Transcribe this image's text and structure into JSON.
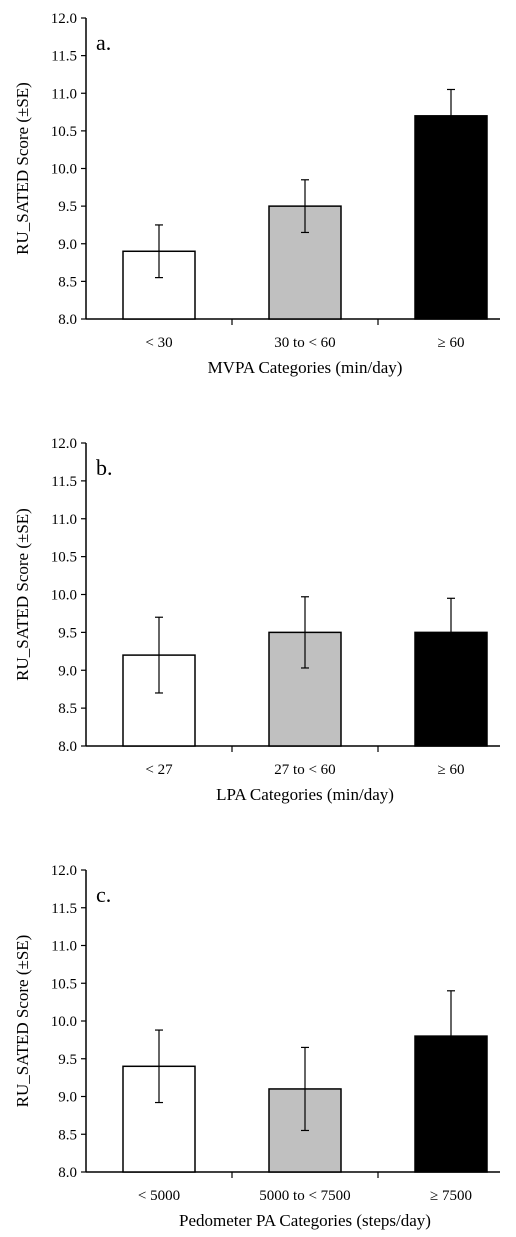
{
  "chart_data": [
    {
      "type": "bar",
      "panel_label": "a.",
      "categories": [
        "< 30",
        "30 to < 60",
        "≥ 60"
      ],
      "values": [
        8.9,
        9.5,
        10.7
      ],
      "error": [
        0.35,
        0.35,
        0.35
      ],
      "colors": [
        "#ffffff",
        "#c0c0c0",
        "#000000"
      ],
      "xlabel": "MVPA Categories (min/day)",
      "ylabel": "RU_SATED Score (±SE)",
      "ylim": [
        8.0,
        12.0
      ],
      "yticks": [
        "8.0",
        "8.5",
        "9.0",
        "9.5",
        "10.0",
        "10.5",
        "11.0",
        "11.5",
        "12.0"
      ],
      "grid": false
    },
    {
      "type": "bar",
      "panel_label": "b.",
      "categories": [
        "< 27",
        "27 to < 60",
        "≥ 60"
      ],
      "values": [
        9.2,
        9.5,
        9.5
      ],
      "error": [
        0.5,
        0.47,
        0.45
      ],
      "colors": [
        "#ffffff",
        "#c0c0c0",
        "#000000"
      ],
      "xlabel": "LPA Categories (min/day)",
      "ylabel": "RU_SATED Score (±SE)",
      "ylim": [
        8.0,
        12.0
      ],
      "yticks": [
        "8.0",
        "8.5",
        "9.0",
        "9.5",
        "10.0",
        "10.5",
        "11.0",
        "11.5",
        "12.0"
      ],
      "grid": false
    },
    {
      "type": "bar",
      "panel_label": "c.",
      "categories": [
        "< 5000",
        "5000 to < 7500",
        "≥ 7500"
      ],
      "values": [
        9.4,
        9.1,
        9.8
      ],
      "error": [
        0.48,
        0.55,
        0.6
      ],
      "colors": [
        "#ffffff",
        "#c0c0c0",
        "#000000"
      ],
      "xlabel": "Pedometer PA Categories (steps/day)",
      "ylabel": "RU_SATED Score (±SE)",
      "ylim": [
        8.0,
        12.0
      ],
      "yticks": [
        "8.0",
        "8.5",
        "9.0",
        "9.5",
        "10.0",
        "10.5",
        "11.0",
        "11.5",
        "12.0"
      ],
      "grid": false
    }
  ]
}
